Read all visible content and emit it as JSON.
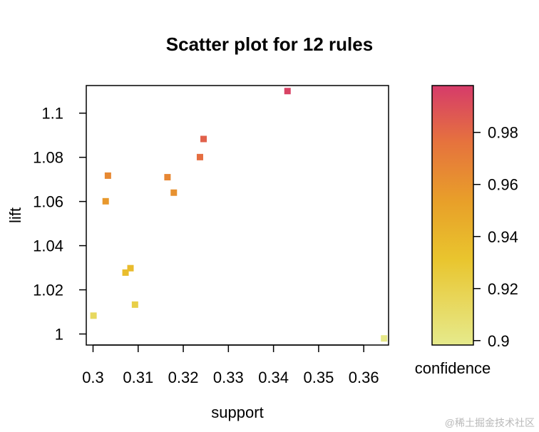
{
  "chart_data": {
    "type": "scatter",
    "title": "Scatter plot for 12 rules",
    "xlabel": "support",
    "ylabel": "lift",
    "xlim": [
      0.2985,
      0.3655
    ],
    "ylim": [
      0.995,
      1.1125
    ],
    "x_ticks": [
      {
        "value": 0.3,
        "label": "0.3"
      },
      {
        "value": 0.31,
        "label": "0.31"
      },
      {
        "value": 0.32,
        "label": "0.32"
      },
      {
        "value": 0.33,
        "label": "0.33"
      },
      {
        "value": 0.34,
        "label": "0.34"
      },
      {
        "value": 0.35,
        "label": "0.35"
      },
      {
        "value": 0.36,
        "label": "0.36"
      }
    ],
    "y_ticks": [
      {
        "value": 1.0,
        "label": "1"
      },
      {
        "value": 1.02,
        "label": "1.02"
      },
      {
        "value": 1.04,
        "label": "1.04"
      },
      {
        "value": 1.06,
        "label": "1.06"
      },
      {
        "value": 1.08,
        "label": "1.08"
      },
      {
        "value": 1.1,
        "label": "1.1"
      }
    ],
    "points": [
      {
        "support": 0.3431,
        "lift": 1.11,
        "confidence": 0.995
      },
      {
        "support": 0.3245,
        "lift": 1.0883,
        "confidence": 0.983
      },
      {
        "support": 0.3237,
        "lift": 1.0801,
        "confidence": 0.978
      },
      {
        "support": 0.3033,
        "lift": 1.0717,
        "confidence": 0.965
      },
      {
        "support": 0.3165,
        "lift": 1.071,
        "confidence": 0.966
      },
      {
        "support": 0.3179,
        "lift": 1.064,
        "confidence": 0.961
      },
      {
        "support": 0.3028,
        "lift": 1.0601,
        "confidence": 0.957
      },
      {
        "support": 0.3083,
        "lift": 1.0298,
        "confidence": 0.937
      },
      {
        "support": 0.3072,
        "lift": 1.0278,
        "confidence": 0.936
      },
      {
        "support": 0.3093,
        "lift": 1.0133,
        "confidence": 0.922
      },
      {
        "support": 0.3001,
        "lift": 1.0083,
        "confidence": 0.914
      },
      {
        "support": 0.3645,
        "lift": 0.998,
        "confidence": 0.9
      }
    ],
    "colorbar": {
      "label": "confidence",
      "range": [
        0.8983,
        0.998
      ],
      "ticks": [
        {
          "value": 0.9,
          "label": "0.9"
        },
        {
          "value": 0.92,
          "label": "0.92"
        },
        {
          "value": 0.94,
          "label": "0.94"
        },
        {
          "value": 0.96,
          "label": "0.96"
        },
        {
          "value": 0.98,
          "label": "0.98"
        }
      ],
      "colors": {
        "low": "#e6ea8c",
        "mid1": "#e9c52e",
        "mid2": "#e8a029",
        "mid3": "#e6733d",
        "high": "#d63b6a"
      }
    },
    "grid": false,
    "legend": "none"
  },
  "watermark": "@稀土掘金技术社区"
}
